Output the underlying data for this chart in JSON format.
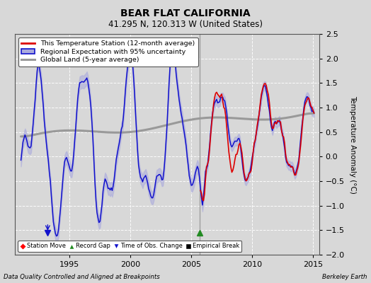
{
  "title": "BEAR FLAT CALIFORNIA",
  "subtitle": "41.295 N, 120.313 W (United States)",
  "ylabel": "Temperature Anomaly (°C)",
  "footer_left": "Data Quality Controlled and Aligned at Breakpoints",
  "footer_right": "Berkeley Earth",
  "ylim": [
    -2.0,
    2.5
  ],
  "xlim": [
    1990.5,
    2015.5
  ],
  "yticks": [
    -2,
    -1.5,
    -1,
    -0.5,
    0,
    0.5,
    1,
    1.5,
    2,
    2.5
  ],
  "xticks": [
    1995,
    2000,
    2005,
    2010,
    2015
  ],
  "background_color": "#d8d8d8",
  "plot_bg_color": "#d8d8d8",
  "station_color": "#dd0000",
  "regional_color": "#1111cc",
  "regional_fill_color": "#aaaadd",
  "global_color": "#999999",
  "legend_items": [
    "This Temperature Station (12-month average)",
    "Regional Expectation with 95% uncertainty",
    "Global Land (5-year average)"
  ],
  "vertical_line_x": 2005.7,
  "vertical_line_color": "#999999",
  "time_of_obs_x": 1993.2,
  "record_gap_x": 2005.7,
  "figsize": [
    5.24,
    4.0
  ],
  "dpi": 100
}
